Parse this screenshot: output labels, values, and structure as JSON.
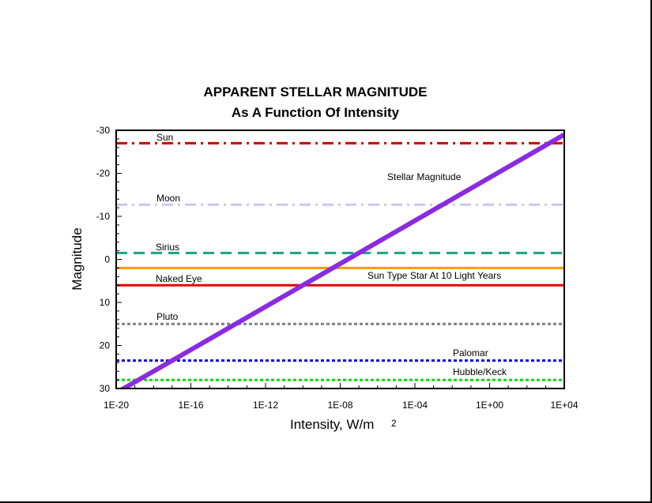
{
  "chart_data": {
    "type": "line",
    "title": "APPARENT STELLAR MAGNITUDE",
    "subtitle": "As A Function Of Intensity",
    "xlabel": "Intensity, W/m",
    "xlabel_sup": "2",
    "ylabel": "Magnitude",
    "x_scale": "log",
    "x_exp_range": [
      -20,
      4
    ],
    "y_range": [
      -30,
      30
    ],
    "y_inverted": true,
    "grid": false,
    "x_ticks": [
      "1E-20",
      "1E-16",
      "1E-12",
      "1E-08",
      "1E-04",
      "1E+00",
      "1E+04"
    ],
    "y_ticks": [
      "-30",
      "-20",
      "-10",
      "0",
      "10",
      "20",
      "30"
    ],
    "stellar_magnitude": {
      "name": "Stellar Magnitude",
      "color": "#8a2be2",
      "x": [
        "1E-20",
        "1E+04"
      ],
      "y": [
        31,
        -29
      ]
    },
    "reference_lines": [
      {
        "name": "Sun",
        "magnitude": -27,
        "color": "#cc0000",
        "style": "dashdot"
      },
      {
        "name": "Moon",
        "magnitude": -12.7,
        "color": "#c8c8f0",
        "style": "dashdot"
      },
      {
        "name": "Sirius",
        "magnitude": -1.5,
        "color": "#20a080",
        "style": "dashed"
      },
      {
        "name": "Sun Type Star At 10 Light Years",
        "magnitude": 2,
        "color": "#ff9900",
        "style": "solid"
      },
      {
        "name": "Naked Eye",
        "magnitude": 6,
        "color": "#e00000",
        "style": "solid"
      },
      {
        "name": "Pluto",
        "magnitude": 15,
        "color": "#808080",
        "style": "dotted"
      },
      {
        "name": "Palomar",
        "magnitude": 23.5,
        "color": "#0000e0",
        "style": "dotted"
      },
      {
        "name": "Hubble/Keck",
        "magnitude": 28,
        "color": "#00dd00",
        "style": "dotted"
      }
    ]
  }
}
